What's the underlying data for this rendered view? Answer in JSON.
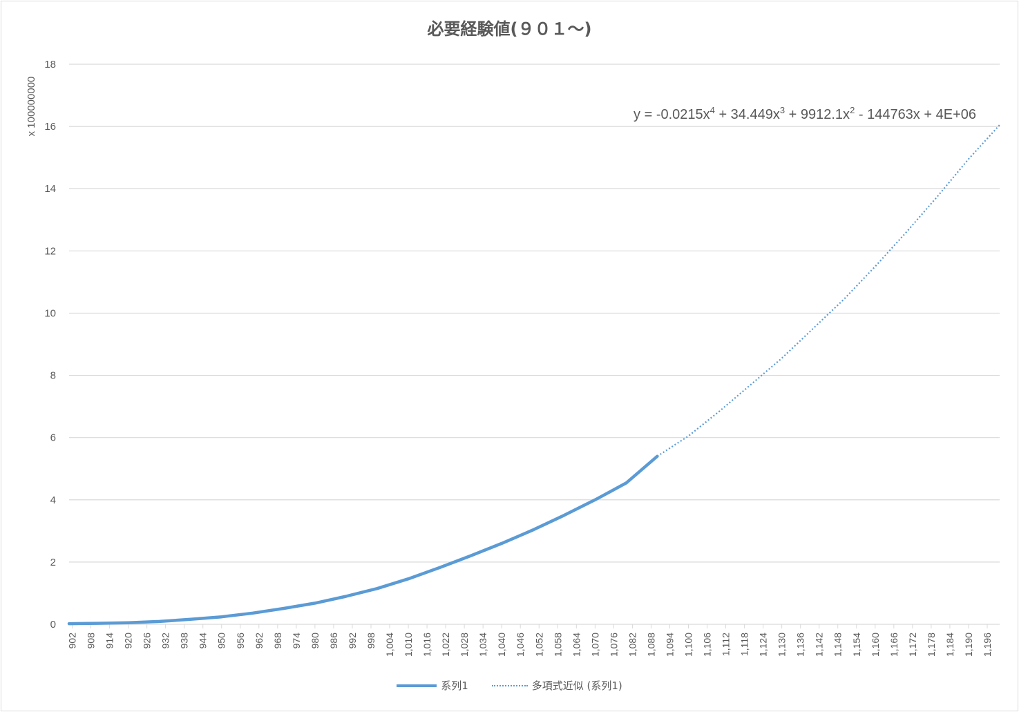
{
  "chart_data": {
    "type": "line",
    "title": "必要経験値(９０１～)",
    "ylabel": "",
    "xlabel": "",
    "y_display_unit_label": "x 100000000",
    "ylim": [
      0,
      18
    ],
    "y_ticks": [
      0,
      2,
      4,
      6,
      8,
      10,
      12,
      14,
      16,
      18
    ],
    "x_range": [
      901,
      1200
    ],
    "x_tick_labels": [
      "902",
      "908",
      "914",
      "920",
      "926",
      "932",
      "938",
      "944",
      "950",
      "956",
      "962",
      "968",
      "974",
      "980",
      "986",
      "992",
      "998",
      "1,004",
      "1,010",
      "1,016",
      "1,022",
      "1,028",
      "1,034",
      "1,040",
      "1,046",
      "1,052",
      "1,058",
      "1,064",
      "1,070",
      "1,076",
      "1,082",
      "1,088",
      "1,094",
      "1,100",
      "1,106",
      "1,112",
      "1,118",
      "1,124",
      "1,130",
      "1,136",
      "1,142",
      "1,148",
      "1,154",
      "1,160",
      "1,166",
      "1,172",
      "1,178",
      "1,184",
      "1,190",
      "1,196"
    ],
    "grid": true,
    "legend_position": "bottom",
    "colors": {
      "series": "#5b9bd5",
      "grid": "#d9d9d9",
      "text": "#595959"
    },
    "series": [
      {
        "name": "系列1",
        "style": "solid",
        "x": [
          901,
          910,
          920,
          930,
          940,
          950,
          960,
          970,
          980,
          990,
          1000,
          1010,
          1020,
          1030,
          1040,
          1050,
          1060,
          1070,
          1080,
          1090
        ],
        "y": [
          0.02,
          0.03,
          0.05,
          0.09,
          0.16,
          0.24,
          0.36,
          0.51,
          0.68,
          0.9,
          1.15,
          1.46,
          1.82,
          2.2,
          2.6,
          3.03,
          3.5,
          4.0,
          4.54,
          5.4
        ]
      },
      {
        "name": "多項式近似 (系列1)",
        "style": "dotted",
        "x": [
          1090,
          1100,
          1110,
          1120,
          1130,
          1140,
          1150,
          1160,
          1170,
          1180,
          1190,
          1200
        ],
        "y": [
          5.4,
          6.05,
          6.85,
          7.7,
          8.55,
          9.5,
          10.45,
          11.5,
          12.6,
          13.75,
          14.95,
          16.05
        ]
      }
    ],
    "annotations": {
      "trendline_eq_prefix": "y = -0.0215x",
      "trendline_eq_exp4": "4",
      "trendline_eq_part2": " + 34.449x",
      "trendline_eq_exp3": "3",
      "trendline_eq_part3": " + 9912.1x",
      "trendline_eq_exp2": "2",
      "trendline_eq_part4": " - 144763x + 4E+06"
    }
  }
}
